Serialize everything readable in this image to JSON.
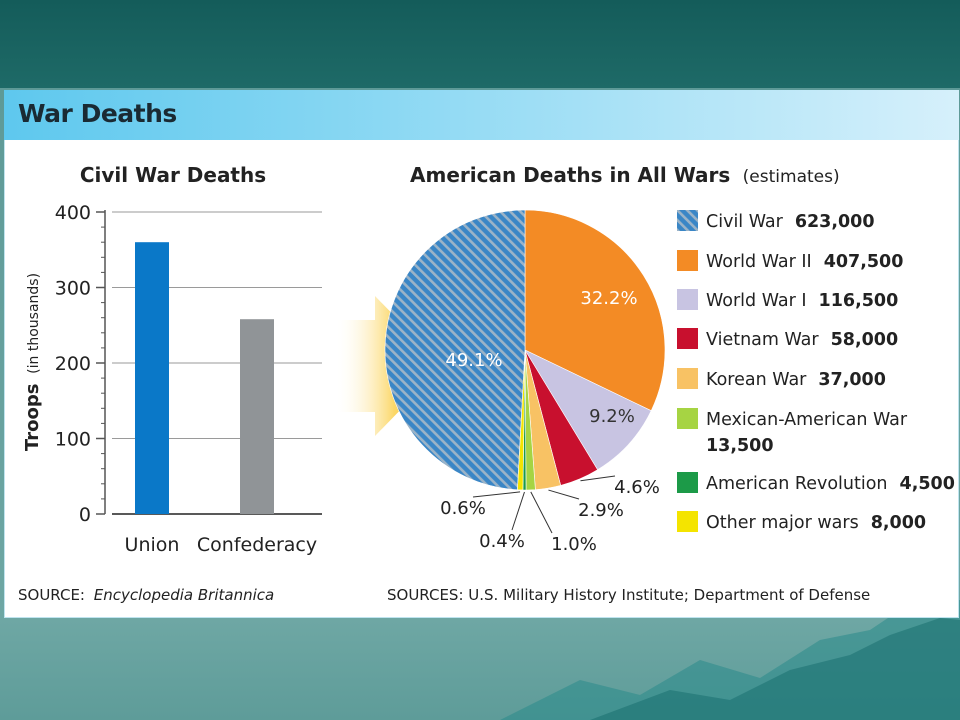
{
  "title": "War Deaths",
  "colors": {
    "union": "#0a78c8",
    "confederacy": "#909497",
    "civil_war": "#3a86c6",
    "civil_war_hatch": "#9bb3c7",
    "world_war_ii": "#f38b25",
    "world_war_i": "#c8c4e2",
    "vietnam": "#c8102e",
    "korean": "#f8c264",
    "mexican_american": "#a6d443",
    "american_revolution": "#1c9a48",
    "other": "#f4e400"
  },
  "chart_data": [
    {
      "type": "bar",
      "title": "Civil War Deaths",
      "ylabel_main": "Troops",
      "ylabel_sub": "(in thousands)",
      "categories": [
        "Union",
        "Confederacy"
      ],
      "values": [
        360,
        258
      ],
      "ylim": [
        0,
        400
      ],
      "yticks": [
        "0",
        "100",
        "200",
        "300",
        "400"
      ],
      "grid": true,
      "source_prefix": "SOURCE:",
      "source_name": "Encyclopedia Britannica"
    },
    {
      "type": "pie",
      "title": "American Deaths in All Wars",
      "subtitle": "(estimates)",
      "legend_position": "right",
      "slices": [
        {
          "name": "Civil War",
          "value": 623000,
          "value_label": "623,000",
          "percent_label": "49.1%",
          "color_key": "civil_war"
        },
        {
          "name": "World War II",
          "value": 407500,
          "value_label": "407,500",
          "percent_label": "32.2%",
          "color_key": "world_war_ii"
        },
        {
          "name": "World War I",
          "value": 116500,
          "value_label": "116,500",
          "percent_label": "9.2%",
          "color_key": "world_war_i"
        },
        {
          "name": "Vietnam War",
          "value": 58000,
          "value_label": "58,000",
          "percent_label": "4.6%",
          "color_key": "vietnam"
        },
        {
          "name": "Korean War",
          "value": 37000,
          "value_label": "37,000",
          "percent_label": "2.9%",
          "color_key": "korean"
        },
        {
          "name": "Mexican-American War",
          "value": 13500,
          "value_label": "13,500",
          "percent_label": "1.0%",
          "color_key": "mexican_american"
        },
        {
          "name": "American Revolution",
          "value": 4500,
          "value_label": "4,500",
          "percent_label": "0.4%",
          "color_key": "american_revolution"
        },
        {
          "name": "Other major wars",
          "value": 8000,
          "value_label": "8,000",
          "percent_label": "0.6%",
          "color_key": "other"
        }
      ],
      "source": "SOURCES: U.S. Military History Institute; Department of Defense"
    }
  ]
}
